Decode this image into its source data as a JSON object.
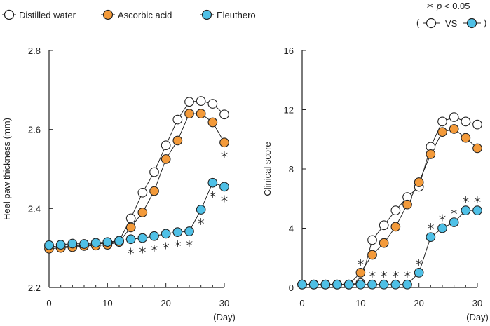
{
  "colors": {
    "white": "#ffffff",
    "orange": "#f39a3a",
    "blue": "#4fc0e6",
    "stroke": "#222222"
  },
  "legend": {
    "items": [
      {
        "label": "Distilled water",
        "color": "#ffffff"
      },
      {
        "label": "Ascorbic acid",
        "color": "#f39a3a"
      },
      {
        "label": "Eleuthero",
        "color": "#4fc0e6"
      }
    ],
    "sig_star": "＊",
    "sig_p": "p",
    "sig_rest": "< 0.05",
    "vs_open": "(",
    "vs_text": "VS",
    "vs_close": ")"
  },
  "chart_data": [
    {
      "type": "line",
      "ylabel": "Heel paw thickness (mm)",
      "xunit": "(Day)",
      "xlim": [
        0,
        30
      ],
      "ylim": [
        2.2,
        2.8
      ],
      "xticks": [
        0,
        10,
        20,
        30
      ],
      "yticks": [
        2.2,
        2.4,
        2.6,
        2.8
      ],
      "x": [
        0,
        2,
        4,
        6,
        8,
        10,
        12,
        14,
        16,
        18,
        20,
        22,
        24,
        26,
        28,
        30
      ],
      "series": [
        {
          "name": "Distilled water",
          "color": "#ffffff",
          "values": [
            2.305,
            2.302,
            2.305,
            2.307,
            2.31,
            2.312,
            2.318,
            2.375,
            2.44,
            2.492,
            2.56,
            2.625,
            2.67,
            2.672,
            2.665,
            2.638
          ]
        },
        {
          "name": "Ascorbic acid",
          "color": "#f39a3a",
          "values": [
            2.298,
            2.3,
            2.302,
            2.305,
            2.306,
            2.308,
            2.315,
            2.352,
            2.39,
            2.444,
            2.525,
            2.572,
            2.64,
            2.64,
            2.618,
            2.567
          ]
        },
        {
          "name": "Eleuthero",
          "color": "#4fc0e6",
          "values": [
            2.307,
            2.308,
            2.311,
            2.31,
            2.313,
            2.315,
            2.318,
            2.322,
            2.325,
            2.33,
            2.336,
            2.34,
            2.342,
            2.397,
            2.465,
            2.455
          ]
        }
      ],
      "significance": [
        {
          "series": "Ascorbic acid",
          "x": [
            30
          ],
          "position": "below"
        },
        {
          "series": "Eleuthero",
          "x": [
            14,
            16,
            18,
            20,
            22,
            24,
            26
          ],
          "position": "below"
        },
        {
          "series": "Eleuthero",
          "x": [
            28,
            30
          ],
          "position": "below"
        }
      ]
    },
    {
      "type": "line",
      "ylabel": "Clinical score",
      "xunit": "(Day)",
      "xlim": [
        0,
        30
      ],
      "ylim": [
        0,
        16
      ],
      "xticks": [
        0,
        10,
        20,
        30
      ],
      "yticks": [
        0,
        4,
        8,
        12,
        16
      ],
      "x": [
        0,
        2,
        4,
        6,
        8,
        10,
        12,
        14,
        16,
        18,
        20,
        22,
        24,
        26,
        28,
        30
      ],
      "series": [
        {
          "name": "Distilled water",
          "color": "#ffffff",
          "values": [
            0.2,
            0.2,
            0.2,
            0.2,
            0.2,
            0.3,
            3.2,
            4.2,
            5.2,
            6.1,
            6.8,
            9.5,
            11.2,
            11.5,
            11.2,
            11.0
          ]
        },
        {
          "name": "Ascorbic acid",
          "color": "#f39a3a",
          "values": [
            0.2,
            0.2,
            0.2,
            0.2,
            0.2,
            1.0,
            2.2,
            3.0,
            4.1,
            5.6,
            7.1,
            9.0,
            10.5,
            10.7,
            10.1,
            9.4
          ]
        },
        {
          "name": "Eleuthero",
          "color": "#4fc0e6",
          "values": [
            0.2,
            0.2,
            0.2,
            0.2,
            0.2,
            0.2,
            0.2,
            0.2,
            0.2,
            0.2,
            1.0,
            3.4,
            4.0,
            4.4,
            5.2,
            5.2
          ]
        }
      ],
      "significance": [
        {
          "series": "Ascorbic acid",
          "x": [
            10
          ],
          "position": "above"
        },
        {
          "series": "Eleuthero",
          "x": [
            12,
            14,
            16,
            18
          ],
          "position": "above"
        },
        {
          "series": "Eleuthero",
          "x": [
            20,
            22,
            24,
            26,
            28,
            30
          ],
          "position": "above"
        }
      ]
    }
  ]
}
